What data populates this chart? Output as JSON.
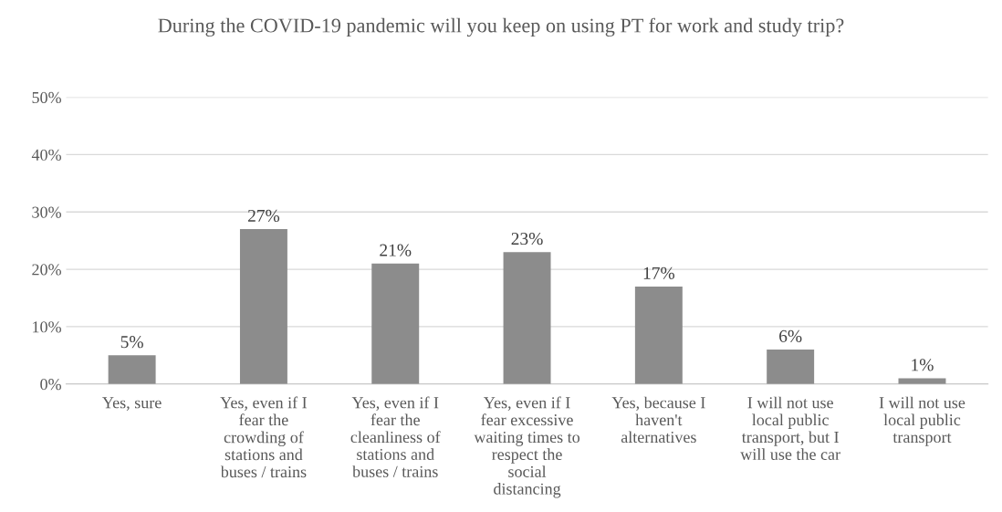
{
  "chart_data": {
    "type": "bar",
    "title": "During the COVID-19 pandemic will you keep on using PT for work and study trip?",
    "categories": [
      "Yes, sure",
      "Yes, even if I fear the crowding of stations and buses / trains",
      "Yes, even if I fear the cleanliness of stations and buses / trains",
      "Yes, even if I fear excessive waiting times to respect the social distancing",
      "Yes, because I haven't alternatives",
      "I will not use local public transport, but I will use the car",
      "I will not use local public transport"
    ],
    "values": [
      5,
      27,
      21,
      23,
      17,
      6,
      1
    ],
    "color": "#8c8c8c",
    "ylim": [
      0,
      50
    ],
    "yticks": [
      {
        "value": 0,
        "label": "0%"
      },
      {
        "value": 10,
        "label": "10%"
      },
      {
        "value": 20,
        "label": "20%"
      },
      {
        "value": 30,
        "label": "30%"
      },
      {
        "value": 40,
        "label": "40%"
      },
      {
        "value": 50,
        "label": "50%"
      }
    ],
    "value_labels": [
      "5%",
      "27%",
      "21%",
      "23%",
      "17%",
      "6%",
      "1%"
    ],
    "grid": "y"
  }
}
